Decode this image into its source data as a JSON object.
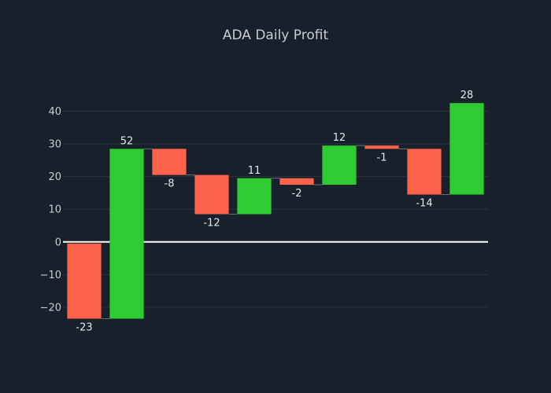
{
  "colors": {
    "background": "#18202b",
    "increase": "#2ecc32",
    "decrease": "#ff624a",
    "grid": "#2a3542",
    "zero_line": "#ffffff"
  },
  "chart_data": {
    "type": "waterfall",
    "title": "ADA Daily Profit",
    "xlabel": "",
    "ylabel": "",
    "ylim": [
      -27,
      50
    ],
    "yticks": [
      -20,
      -10,
      0,
      10,
      20,
      30,
      40
    ],
    "grid": true,
    "legend": "none",
    "values": [
      -23,
      52,
      -8,
      -12,
      11,
      -2,
      12,
      -1,
      -14,
      28
    ],
    "labels": [
      "-23",
      "52",
      "-8",
      "-12",
      "11",
      "-2",
      "12",
      "-1",
      "-14",
      "28"
    ],
    "start_level": -0.5
  }
}
